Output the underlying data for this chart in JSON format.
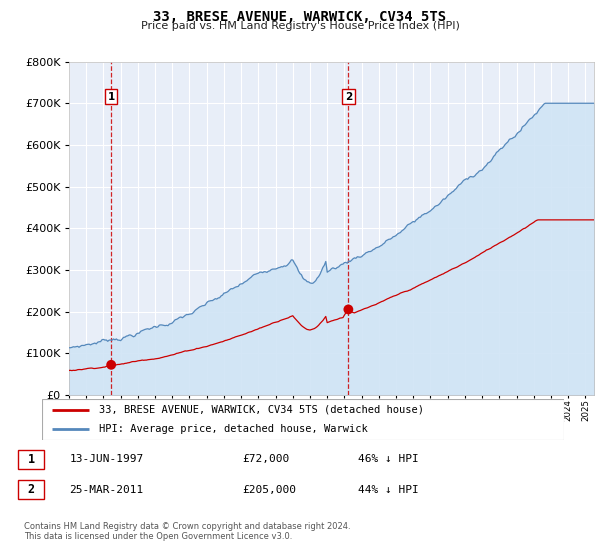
{
  "title": "33, BRESE AVENUE, WARWICK, CV34 5TS",
  "subtitle": "Price paid vs. HM Land Registry's House Price Index (HPI)",
  "legend_line1": "33, BRESE AVENUE, WARWICK, CV34 5TS (detached house)",
  "legend_line2": "HPI: Average price, detached house, Warwick",
  "note": "Contains HM Land Registry data © Crown copyright and database right 2024.\nThis data is licensed under the Open Government Licence v3.0.",
  "transaction1_date": "13-JUN-1997",
  "transaction1_price": "£72,000",
  "transaction1_hpi": "46% ↓ HPI",
  "transaction1_year": 1997.45,
  "transaction1_value": 72000,
  "transaction2_date": "25-MAR-2011",
  "transaction2_price": "£205,000",
  "transaction2_hpi": "44% ↓ HPI",
  "transaction2_year": 2011.23,
  "transaction2_value": 205000,
  "ylim": [
    0,
    800000
  ],
  "xlim_start": 1995.0,
  "xlim_end": 2025.5,
  "red_color": "#cc0000",
  "blue_color": "#5588bb",
  "blue_fill_color": "#d0e4f5",
  "background_color": "#e8eef8",
  "grid_color": "#ffffff",
  "dashed_line_color": "#cc0000"
}
